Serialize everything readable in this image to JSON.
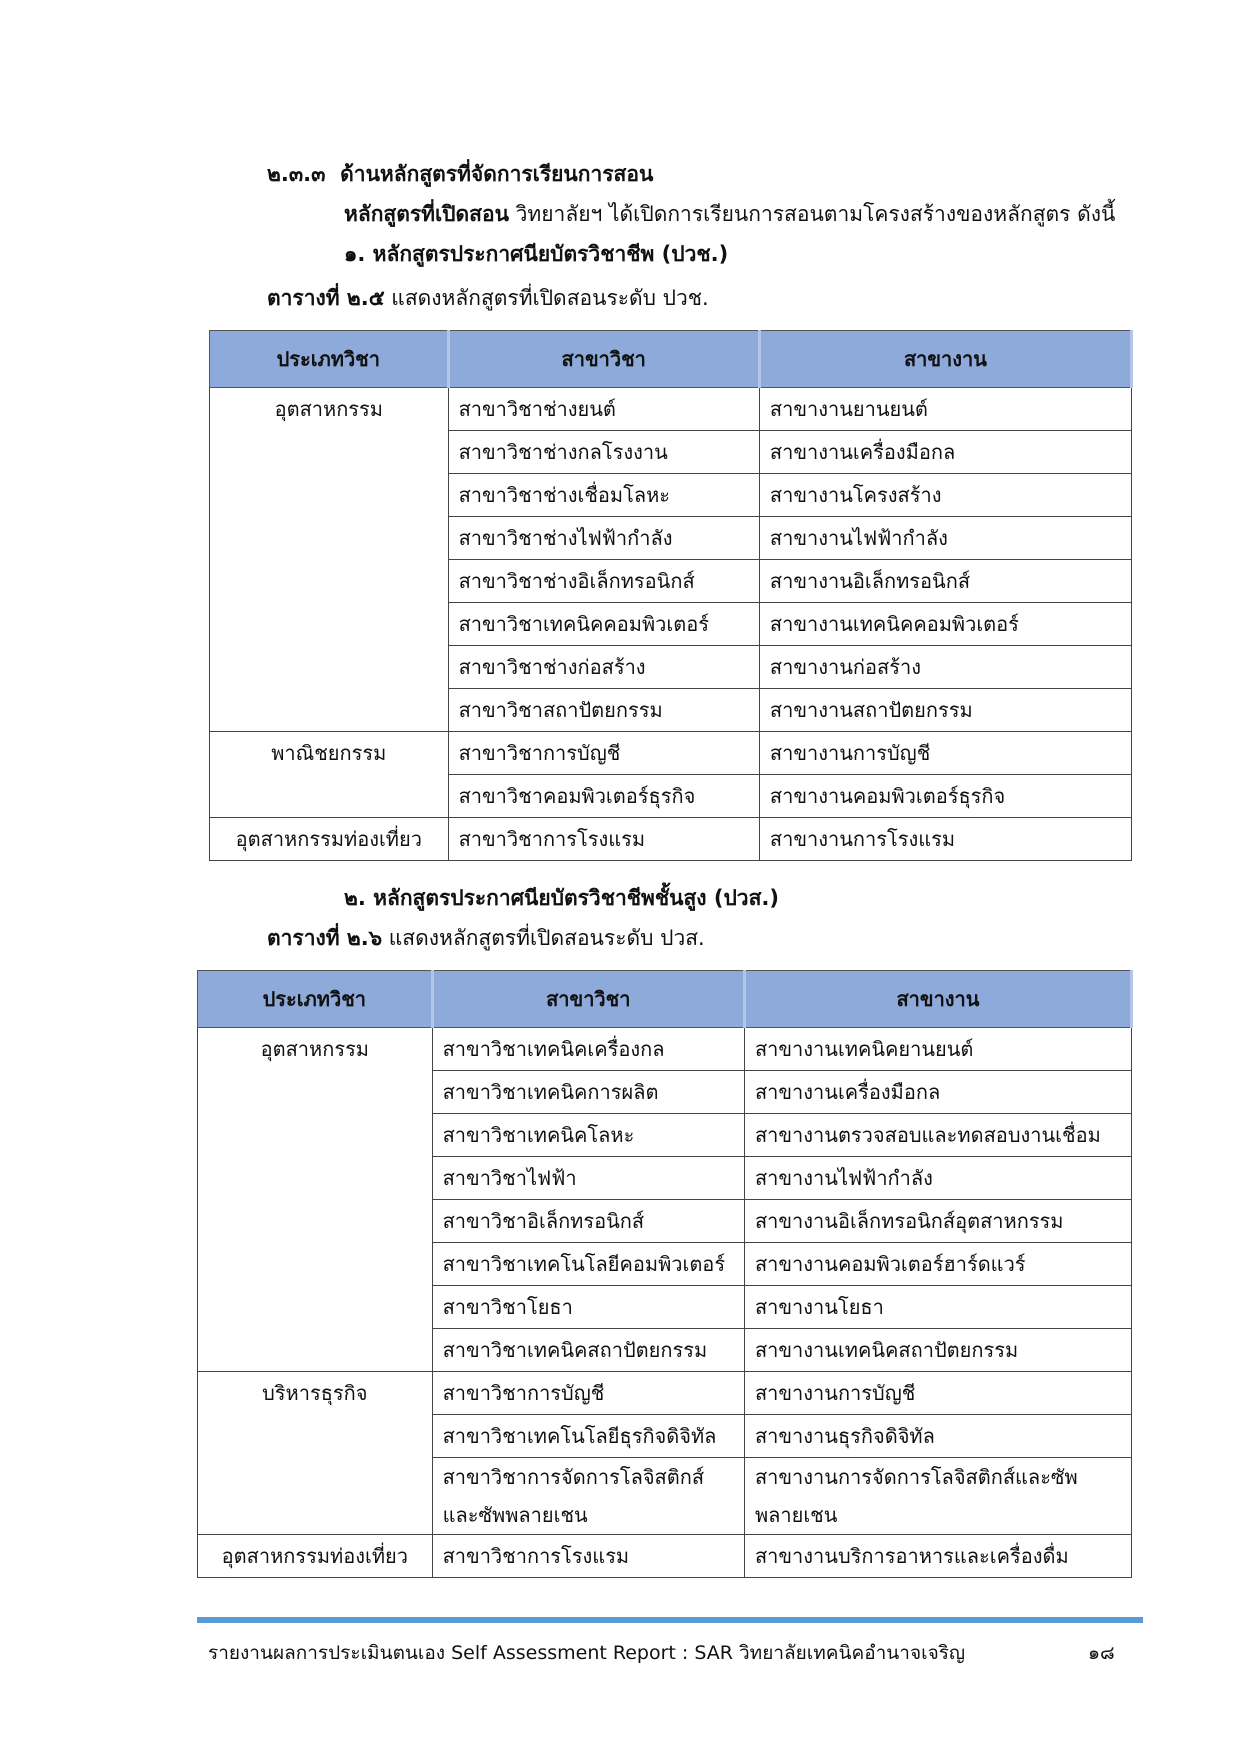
{
  "section": {
    "number": "๒.๓.๓",
    "title": "ด้านหลักสูตรที่จัดการเรียนการสอน"
  },
  "intro": {
    "bold": "หลักสูตรที่เปิดสอน",
    "text": " วิทยาลัยฯ ได้เปิดการเรียนการสอนตามโครงสร้างของหลักสูตร ดังนี้"
  },
  "part1": {
    "heading": "๑. หลักสูตรประกาศนียบัตรวิชาชีพ (ปวช.)",
    "caption_label": "ตารางที่  ๒.๕",
    "caption_text": " แสดงหลักสูตรที่เปิดสอนระดับ ปวช."
  },
  "part2": {
    "heading": "๒. หลักสูตรประกาศนียบัตรวิชาชีพชั้นสูง (ปวส.)",
    "caption_label": "ตารางที่  ๒.๖",
    "caption_text": " แสดงหลักสูตรที่เปิดสอนระดับ ปวส."
  },
  "headers": [
    "ประเภทวิชา",
    "สาขาวิชา",
    "สาขางาน"
  ],
  "table1": [
    {
      "category": "อุตสาหกรรม",
      "rows": [
        [
          "สาขาวิชาช่างยนต์",
          "สาขางานยานยนต์"
        ],
        [
          "สาขาวิชาช่างกลโรงงาน",
          "สาขางานเครื่องมือกล"
        ],
        [
          "สาขาวิชาช่างเชื่อมโลหะ",
          "สาขางานโครงสร้าง"
        ],
        [
          "สาขาวิชาช่างไฟฟ้ากำลัง",
          "สาขางานไฟฟ้ากำลัง"
        ],
        [
          "สาขาวิชาช่างอิเล็กทรอนิกส์",
          "สาขางานอิเล็กทรอนิกส์"
        ],
        [
          "สาขาวิชาเทคนิคคอมพิวเตอร์",
          "สาขางานเทคนิคคอมพิวเตอร์"
        ],
        [
          "สาขาวิชาช่างก่อสร้าง",
          "สาขางานก่อสร้าง"
        ],
        [
          "สาขาวิชาสถาปัตยกรรม",
          "สาขางานสถาปัตยกรรม"
        ]
      ]
    },
    {
      "category": "พาณิชยกรรม",
      "rows": [
        [
          "สาขาวิชาการบัญชี",
          "สาขางานการบัญชี"
        ],
        [
          "สาขาวิชาคอมพิวเตอร์ธุรกิจ",
          "สาขางานคอมพิวเตอร์ธุรกิจ"
        ]
      ]
    },
    {
      "category": "อุตสาหกรรมท่องเที่ยว",
      "rows": [
        [
          "สาขาวิชาการโรงแรม",
          "สาขางานการโรงแรม"
        ]
      ]
    }
  ],
  "table2": [
    {
      "category": "อุตสาหกรรม",
      "rows": [
        [
          "สาขาวิชาเทคนิคเครื่องกล",
          "สาขางานเทคนิคยานยนต์"
        ],
        [
          "สาขาวิชาเทคนิคการผลิต",
          "สาขางานเครื่องมือกล"
        ],
        [
          "สาขาวิชาเทคนิคโลหะ",
          "สาขางานตรวจสอบและทดสอบงานเชื่อม"
        ],
        [
          "สาขาวิชาไฟฟ้า",
          "สาขางานไฟฟ้ากำลัง"
        ],
        [
          "สาขาวิชาอิเล็กทรอนิกส์",
          "สาขางานอิเล็กทรอนิกส์อุตสาหกรรม"
        ],
        [
          "สาขาวิชาเทคโนโลยีคอมพิวเตอร์",
          "สาขางานคอมพิวเตอร์ฮาร์ดแวร์"
        ],
        [
          "สาขาวิชาโยธา",
          "สาขางานโยธา"
        ],
        [
          "สาขาวิชาเทคนิคสถาปัตยกรรม",
          "สาขางานเทคนิคสถาปัตยกรรม"
        ]
      ]
    },
    {
      "category": "บริหารธุรกิจ",
      "rows": [
        [
          "สาขาวิชาการบัญชี",
          "สาขางานการบัญชี"
        ],
        [
          "สาขาวิชาเทคโนโลยีธุรกิจดิจิทัล",
          "สาขางานธุรกิจดิจิทัล"
        ],
        [
          "สาขาวิชาการจัดการโลจิสติกส์ และซัพพลายเชน",
          "สาขางานการจัดการโลจิสติกส์และซัพ พลายเชน"
        ]
      ]
    },
    {
      "category": "อุตสาหกรรมท่องเที่ยว",
      "rows": [
        [
          "สาขาวิชาการโรงแรม",
          "สาขางานบริการอาหารและเครื่องดื่ม"
        ]
      ]
    }
  ],
  "footer": {
    "text": "รายงานผลการประเมินตนเอง Self Assessment Report : SAR  วิทยาลัยเทคนิคอำนาจเจริญ",
    "page": "๑๘"
  },
  "colors": {
    "header_fill": "#8eaadb",
    "footer_rule": "#5b9bd5"
  }
}
